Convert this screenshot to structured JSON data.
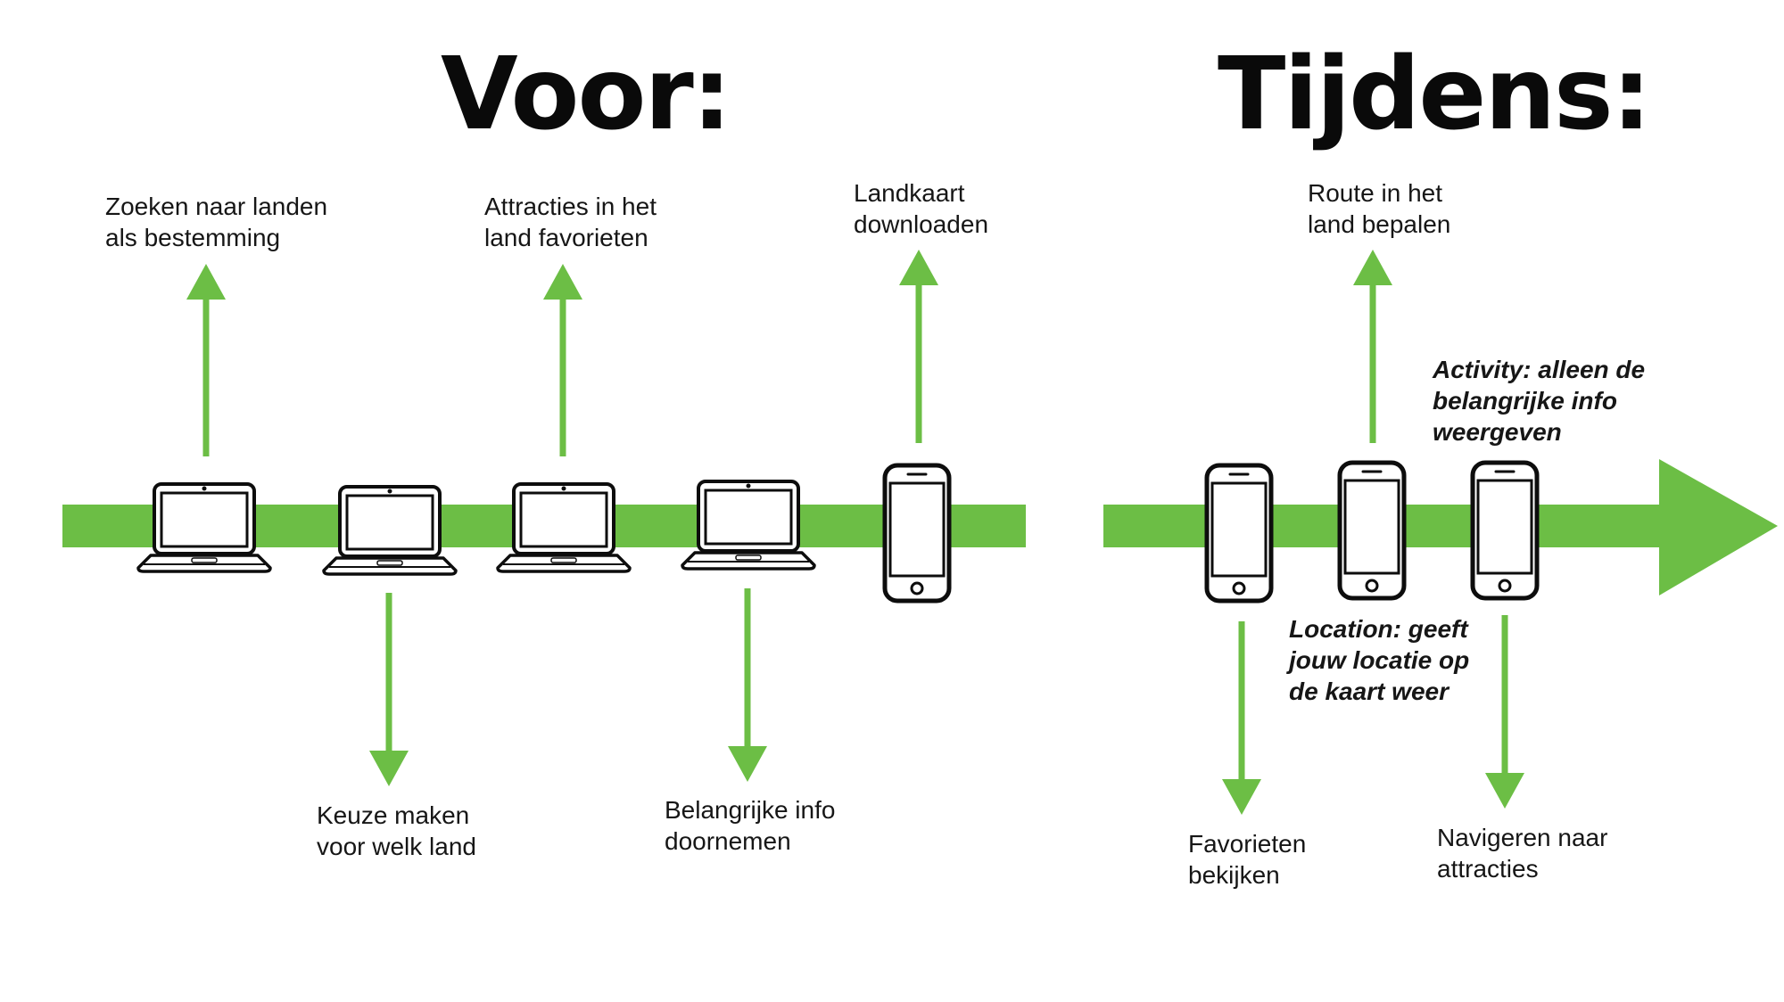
{
  "colors": {
    "accent_green": "#6cbe45",
    "device_outline": "#0d0d0d",
    "text": "#161616"
  },
  "headings": {
    "before": "Voor:",
    "during": "Tijdens:"
  },
  "icons": {
    "laptop": "laptop-icon",
    "smartphone": "smartphone-icon",
    "arrow": "arrow-icon"
  },
  "before_steps": [
    {
      "device": "laptop",
      "label": "Zoeken naar landen\nals bestemming",
      "direction": "up"
    },
    {
      "device": "laptop",
      "label": "Keuze maken\nvoor welk land",
      "direction": "down"
    },
    {
      "device": "laptop",
      "label": "Attracties in het\nland favorieten",
      "direction": "up"
    },
    {
      "device": "laptop",
      "label": "Belangrijke info\ndoornemen",
      "direction": "down"
    },
    {
      "device": "smartphone",
      "label": "Landkaart\ndownloaden",
      "direction": "up"
    }
  ],
  "during_steps": [
    {
      "device": "smartphone",
      "label": "Favorieten\nbekijken",
      "direction": "down"
    },
    {
      "device": "smartphone",
      "label": "Route in het\nland bepalen",
      "direction": "up",
      "note": "Location: geeft\njouw locatie op\nde kaart weer"
    },
    {
      "device": "smartphone",
      "label": "Navigeren naar\nattracties",
      "direction": "down",
      "note": "Activity: alleen de\nbelangrijke info\nweergeven"
    }
  ]
}
